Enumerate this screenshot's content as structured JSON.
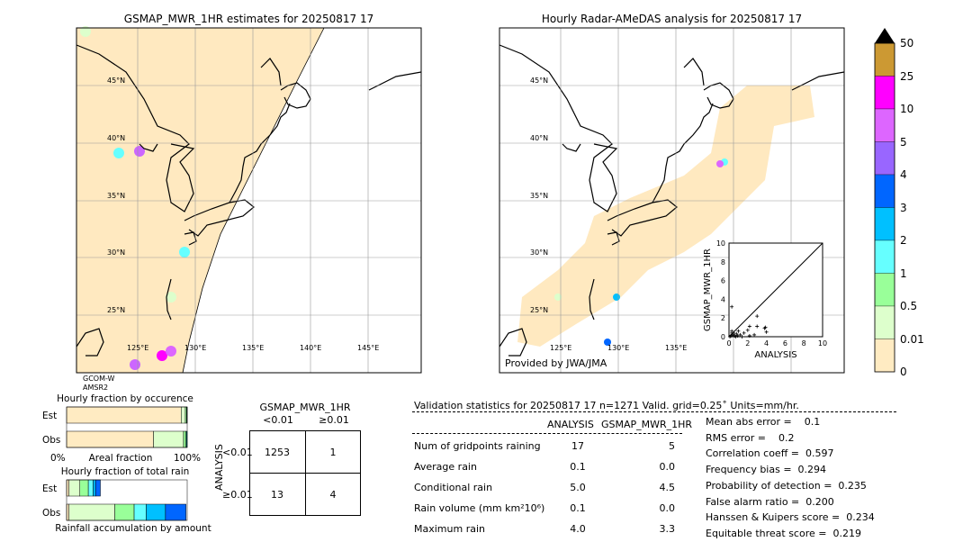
{
  "left_map": {
    "title": "GSMAP_MWR_1HR estimates for 20250817 17",
    "sensor_line1": "GCOM-W",
    "sensor_line2": "AMSR2"
  },
  "right_map": {
    "title": "Hourly Radar-AMeDAS analysis for 20250817 17",
    "credit": "Provided by JWA/JMA"
  },
  "lat_labels": [
    "45°N",
    "40°N",
    "35°N",
    "30°N",
    "25°N"
  ],
  "lon_labels": [
    "125°E",
    "130°E",
    "135°E",
    "140°E",
    "145°E"
  ],
  "colorbar": {
    "labels": [
      "50",
      "25",
      "10",
      "5",
      "4",
      "3",
      "2",
      "1",
      "0.5",
      "0.01",
      "0"
    ],
    "colors": [
      "#cc9933",
      "#ff00ff",
      "#dd66ff",
      "#9966ff",
      "#0066ff",
      "#00c0ff",
      "#66ffff",
      "#99ff99",
      "#ddffcc",
      "#ffebc2"
    ],
    "extend_color": "#000000"
  },
  "chart_data": [
    {
      "type": "scatter",
      "xlabel": "ANALYSIS",
      "ylabel": "GSMAP_MWR_1HR",
      "xlim": [
        0,
        10
      ],
      "ylim": [
        0,
        10
      ],
      "xticks": [
        "0",
        "2",
        "4",
        "6",
        "8",
        "10"
      ],
      "yticks": [
        "0",
        "2",
        "4",
        "6",
        "8",
        "10"
      ],
      "points": [
        [
          0.3,
          3.2
        ],
        [
          3,
          2.2
        ],
        [
          2.2,
          1.1
        ],
        [
          3,
          1.1
        ],
        [
          3.8,
          0.9
        ],
        [
          4,
          0.5
        ],
        [
          3.9,
          1
        ],
        [
          2,
          0.7
        ],
        [
          1.6,
          0.4
        ],
        [
          1.2,
          0.2
        ],
        [
          2.7,
          0.2
        ],
        [
          0.3,
          0.6
        ],
        [
          0.5,
          0.4
        ],
        [
          0.8,
          0.3
        ],
        [
          1,
          0.6
        ],
        [
          0.2,
          0.1
        ],
        [
          0.4,
          0.2
        ],
        [
          0.6,
          0.1
        ],
        [
          0.1,
          0
        ],
        [
          0.7,
          0
        ],
        [
          0.9,
          0.1
        ],
        [
          1.4,
          0
        ],
        [
          2.2,
          0.1
        ],
        [
          0.3,
          0.4
        ]
      ]
    },
    {
      "type": "bar",
      "title": "Hourly fraction by occurence",
      "xlabel": "Areal fraction",
      "xtick_left": "0%",
      "xtick_right": "100%",
      "categories": [
        "Est",
        "Obs"
      ],
      "series": [
        {
          "values": [
            0.95,
            0.72
          ]
        },
        {
          "values": [
            0.035,
            0.25
          ]
        },
        {
          "values": [
            0.01,
            0.02
          ]
        },
        {
          "values": [
            0.005,
            0.01
          ]
        }
      ],
      "colors": [
        "#ffebc2",
        "#ddffcc",
        "#99ff99",
        "#006666"
      ]
    },
    {
      "type": "bar",
      "title": "Hourly fraction of total rain",
      "xlabel": "Rainfall accumulation by amount",
      "categories": [
        "Est",
        "Obs"
      ],
      "series": [
        {
          "values": [
            0.02,
            0.02
          ]
        },
        {
          "values": [
            0.09,
            0.38
          ]
        },
        {
          "values": [
            0.07,
            0.16
          ]
        },
        {
          "values": [
            0.04,
            0.1
          ]
        },
        {
          "values": [
            0.02,
            0.16
          ]
        },
        {
          "values": [
            0.04,
            0.17
          ]
        }
      ],
      "colors": [
        "#ffebc2",
        "#ddffcc",
        "#99ff99",
        "#66ffff",
        "#00c0ff",
        "#0066ff"
      ]
    }
  ],
  "contingency": {
    "title": "GSMAP_MWR_1HR",
    "col_headers": [
      "<0.01",
      "≥0.01"
    ],
    "row_label": "ANALYSIS",
    "row_headers": [
      "<0.01",
      "≥0.01"
    ],
    "cells": [
      [
        "1253",
        "1"
      ],
      [
        "13",
        "4"
      ]
    ]
  },
  "stats": {
    "header": "Validation statistics for 20250817 17  n=1271 Valid. grid=0.25˚ Units=mm/hr.",
    "col_headers": [
      "ANALYSIS",
      "GSMAP_MWR_1HR"
    ],
    "rows": [
      {
        "label": "Num of gridpoints raining",
        "a": "17",
        "b": "5"
      },
      {
        "label": "Average rain",
        "a": "0.1",
        "b": "0.0"
      },
      {
        "label": "Conditional rain",
        "a": "5.0",
        "b": "4.5"
      },
      {
        "label": "Rain volume (mm km²10⁶)",
        "a": "0.1",
        "b": "0.0"
      },
      {
        "label": "Maximum rain",
        "a": "4.0",
        "b": "3.3"
      }
    ],
    "scores": [
      "Mean abs error =    0.1",
      "RMS error =    0.2",
      "Correlation coeff =  0.597",
      "Frequency bias =  0.294",
      "Probability of detection =  0.235",
      "False alarm ratio =  0.200",
      "Hanssen & Kuipers score =  0.234",
      "Equitable threat score =  0.219"
    ]
  }
}
